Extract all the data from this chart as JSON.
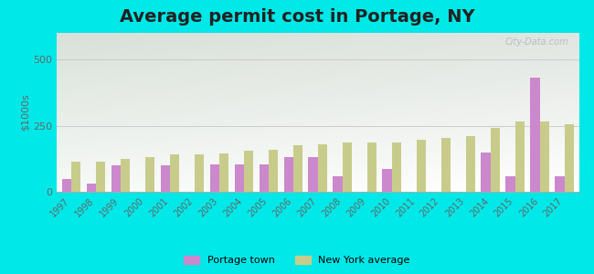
{
  "title": "Average permit cost in Portage, NY",
  "ylabel": "$1000s",
  "years": [
    1997,
    1998,
    1999,
    2000,
    2001,
    2002,
    2003,
    2004,
    2005,
    2006,
    2007,
    2008,
    2009,
    2010,
    2011,
    2012,
    2013,
    2014,
    2015,
    2016,
    2017
  ],
  "portage": [
    50,
    30,
    100,
    0,
    100,
    0,
    105,
    105,
    105,
    130,
    130,
    60,
    0,
    85,
    0,
    0,
    0,
    150,
    60,
    430,
    60
  ],
  "ny_avg": [
    115,
    115,
    125,
    130,
    140,
    140,
    145,
    155,
    160,
    175,
    180,
    185,
    185,
    185,
    195,
    205,
    210,
    240,
    265,
    265,
    255
  ],
  "portage_color": "#cc88cc",
  "ny_color": "#c8cc8a",
  "bg_outer": "#00e8e8",
  "ylim": [
    0,
    600
  ],
  "yticks": [
    0,
    250,
    500
  ],
  "grid_color": "#cccccc",
  "title_fontsize": 14,
  "legend_portage": "Portage town",
  "legend_ny": "New York average",
  "watermark": "City-Data.com"
}
